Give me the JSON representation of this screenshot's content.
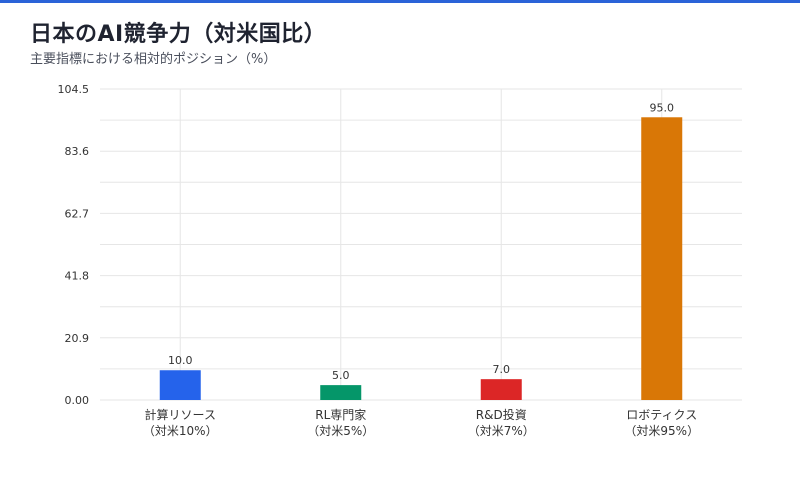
{
  "header": {
    "title": "日本のAI競争力（対米国比）",
    "subtitle": "主要指標における相対的ポジション（%）"
  },
  "colors": {
    "accent": "#2a63d8",
    "grid": "#e6e6e6"
  },
  "chart_data": {
    "type": "bar",
    "title": "日本のAI競争力（対米国比）",
    "subtitle": "主要指標における相対的ポジション（%）",
    "categories": [
      [
        "計算リソース",
        "（対米10%）"
      ],
      [
        "RL専門家",
        "（対米5%）"
      ],
      [
        "R&D投資",
        "（対米7%）"
      ],
      [
        "ロボティクス",
        "（対米95%）"
      ]
    ],
    "values": [
      10.0,
      5.0,
      7.0,
      95.0
    ],
    "value_labels": [
      "10.0",
      "5.0",
      "7.0",
      "95.0"
    ],
    "bar_colors": [
      "#2563eb",
      "#059669",
      "#dc2626",
      "#d97706"
    ],
    "yticks": [
      "0.00",
      "20.9",
      "41.8",
      "62.7",
      "83.6",
      "104.5"
    ],
    "ylim": [
      0,
      104.5
    ],
    "grid": true,
    "legend": "none",
    "xlabel": "",
    "ylabel": ""
  }
}
